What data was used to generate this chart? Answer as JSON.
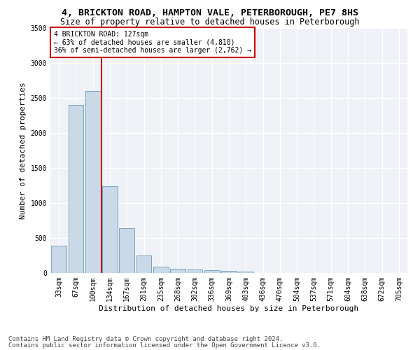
{
  "title1": "4, BRICKTON ROAD, HAMPTON VALE, PETERBOROUGH, PE7 8HS",
  "title2": "Size of property relative to detached houses in Peterborough",
  "xlabel": "Distribution of detached houses by size in Peterborough",
  "ylabel": "Number of detached properties",
  "categories": [
    "33sqm",
    "67sqm",
    "100sqm",
    "134sqm",
    "167sqm",
    "201sqm",
    "235sqm",
    "268sqm",
    "302sqm",
    "336sqm",
    "369sqm",
    "403sqm",
    "436sqm",
    "470sqm",
    "504sqm",
    "537sqm",
    "571sqm",
    "604sqm",
    "638sqm",
    "672sqm",
    "705sqm"
  ],
  "values": [
    390,
    2400,
    2600,
    1240,
    640,
    255,
    90,
    60,
    55,
    45,
    30,
    20,
    0,
    0,
    0,
    0,
    0,
    0,
    0,
    0,
    0
  ],
  "bar_color": "#c9d9e8",
  "bar_edge_color": "#6699bb",
  "vline_color": "#cc0000",
  "vline_x": 2.5,
  "annotation_text": "4 BRICKTON ROAD: 127sqm\n← 63% of detached houses are smaller (4,810)\n36% of semi-detached houses are larger (2,762) →",
  "annotation_box_facecolor": "#ffffff",
  "annotation_box_edgecolor": "#cc0000",
  "ylim": [
    0,
    3500
  ],
  "yticks": [
    0,
    500,
    1000,
    1500,
    2000,
    2500,
    3000,
    3500
  ],
  "footer1": "Contains HM Land Registry data © Crown copyright and database right 2024.",
  "footer2": "Contains public sector information licensed under the Open Government Licence v3.0.",
  "bg_color": "#ffffff",
  "plot_bg_color": "#eef2f7",
  "title1_fontsize": 9.5,
  "title2_fontsize": 8.5,
  "xlabel_fontsize": 8,
  "ylabel_fontsize": 8,
  "tick_fontsize": 7,
  "annotation_fontsize": 7,
  "footer_fontsize": 6.5
}
